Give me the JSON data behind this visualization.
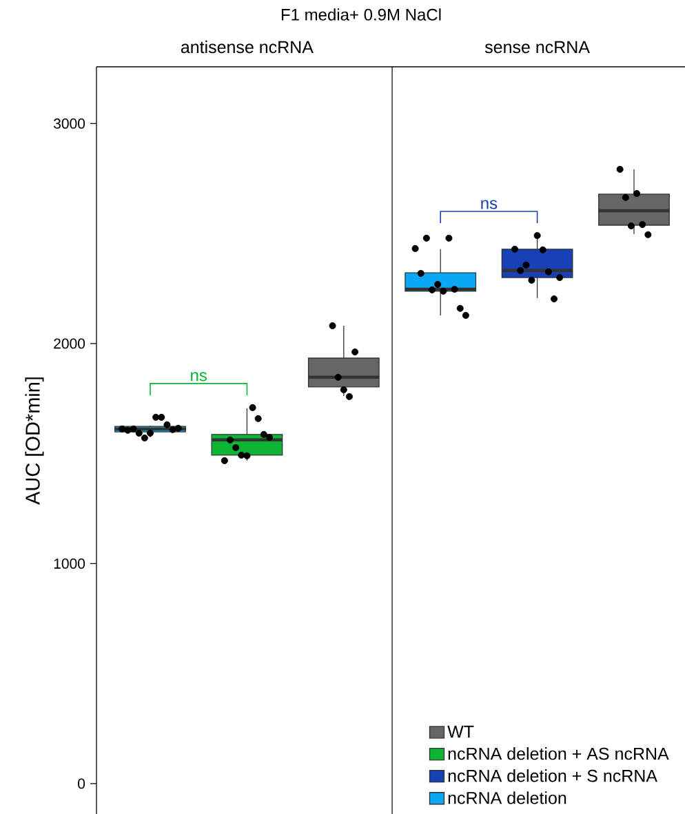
{
  "chart_data": {
    "type": "box",
    "title": "F1 media+ 0.9M NaCl",
    "ylabel": "AUC [OD*min]",
    "categories": [
      null,
      null,
      null,
      null,
      null,
      null
    ],
    "ylim": [
      -138,
      3258
    ],
    "yticks": [
      0,
      1000,
      2000,
      3000
    ],
    "tick_labels": "y",
    "grid": false,
    "legend": "bottom right",
    "annotations": [
      "antisense ncRNA",
      "sense ncRNA",
      "ns",
      "ns"
    ],
    "series": [
      {
        "name": "WT",
        "color": "#666666",
        "boxes": [
          null,
          null,
          {
            "low": 1762,
            "q1": 1803,
            "median": 1847,
            "q3": 1934,
            "high": 2081
          },
          null,
          null,
          {
            "low": 2498,
            "q1": 2538,
            "median": 2604,
            "q3": 2679,
            "high": 2792
          }
        ]
      },
      {
        "name": "ncRNA deletion + AS ncRNA",
        "color": "#0db535",
        "boxes": [
          null,
          {
            "low": 1468,
            "q1": 1493,
            "median": 1562,
            "q3": 1587,
            "high": 1706
          },
          null,
          null,
          null,
          null
        ]
      },
      {
        "name": "ncRNA deletion + S ncRNA",
        "color": "#1740b5",
        "boxes": [
          null,
          null,
          null,
          null,
          {
            "low": 2207,
            "q1": 2300,
            "median": 2332,
            "q3": 2429,
            "high": 2491
          },
          null
        ]
      },
      {
        "name": "ncRNA deletion",
        "color": "#0aa8f5",
        "boxes": [
          {
            "low": 1574,
            "q1": 1599,
            "median": 1612,
            "q3": 1624,
            "high": 1627
          },
          null,
          null,
          {
            "low": 2128,
            "q1": 2238,
            "median": 2247,
            "q3": 2322,
            "high": 2429
          },
          null,
          null
        ]
      },
      {
        "type": "scatter",
        "color": "#000000",
        "marker": "circle",
        "values": [
          1612,
          1468,
          2081,
          2432,
          2429,
          2792
        ]
      },
      {
        "type": "scatter",
        "color": "#000000",
        "marker": "circle",
        "values": [
          1606,
          1562,
          1847,
          2319,
          2332,
          2664
        ]
      },
      {
        "type": "scatter",
        "color": "#000000",
        "marker": "circle",
        "values": [
          1612,
          1527,
          1790,
          2479,
          2357,
          2535
        ]
      },
      {
        "type": "scatter",
        "color": "#000000",
        "marker": "circle",
        "values": [
          1593,
          1493,
          1759,
          2244,
          2288,
          2682
        ]
      },
      {
        "type": "scatter",
        "color": "#000000",
        "marker": "circle",
        "values": [
          1571,
          1490,
          1962,
          2269,
          2491,
          2541
        ]
      },
      {
        "type": "scatter",
        "color": "#000000",
        "marker": "circle",
        "values": [
          1593,
          1709,
          null,
          2238,
          2426,
          2495
        ]
      },
      {
        "type": "scatter",
        "color": "#000000",
        "marker": "circle",
        "values": [
          1665,
          1659,
          null,
          2479,
          2326,
          null
        ]
      },
      {
        "type": "scatter",
        "color": "#000000",
        "marker": "circle",
        "values": [
          1665,
          1587,
          null,
          2247,
          2203,
          null
        ]
      },
      {
        "type": "scatter",
        "color": "#000000",
        "marker": "circle",
        "values": [
          1631,
          1574,
          null,
          2160,
          2300,
          null
        ]
      },
      {
        "type": "scatter",
        "color": "#000000",
        "marker": "circle",
        "values": [
          1609,
          null,
          null,
          2128,
          null,
          null
        ]
      },
      {
        "type": "scatter",
        "color": "#000000",
        "marker": "circle",
        "values": [
          1615,
          null,
          null,
          null,
          null,
          null
        ]
      }
    ]
  }
}
